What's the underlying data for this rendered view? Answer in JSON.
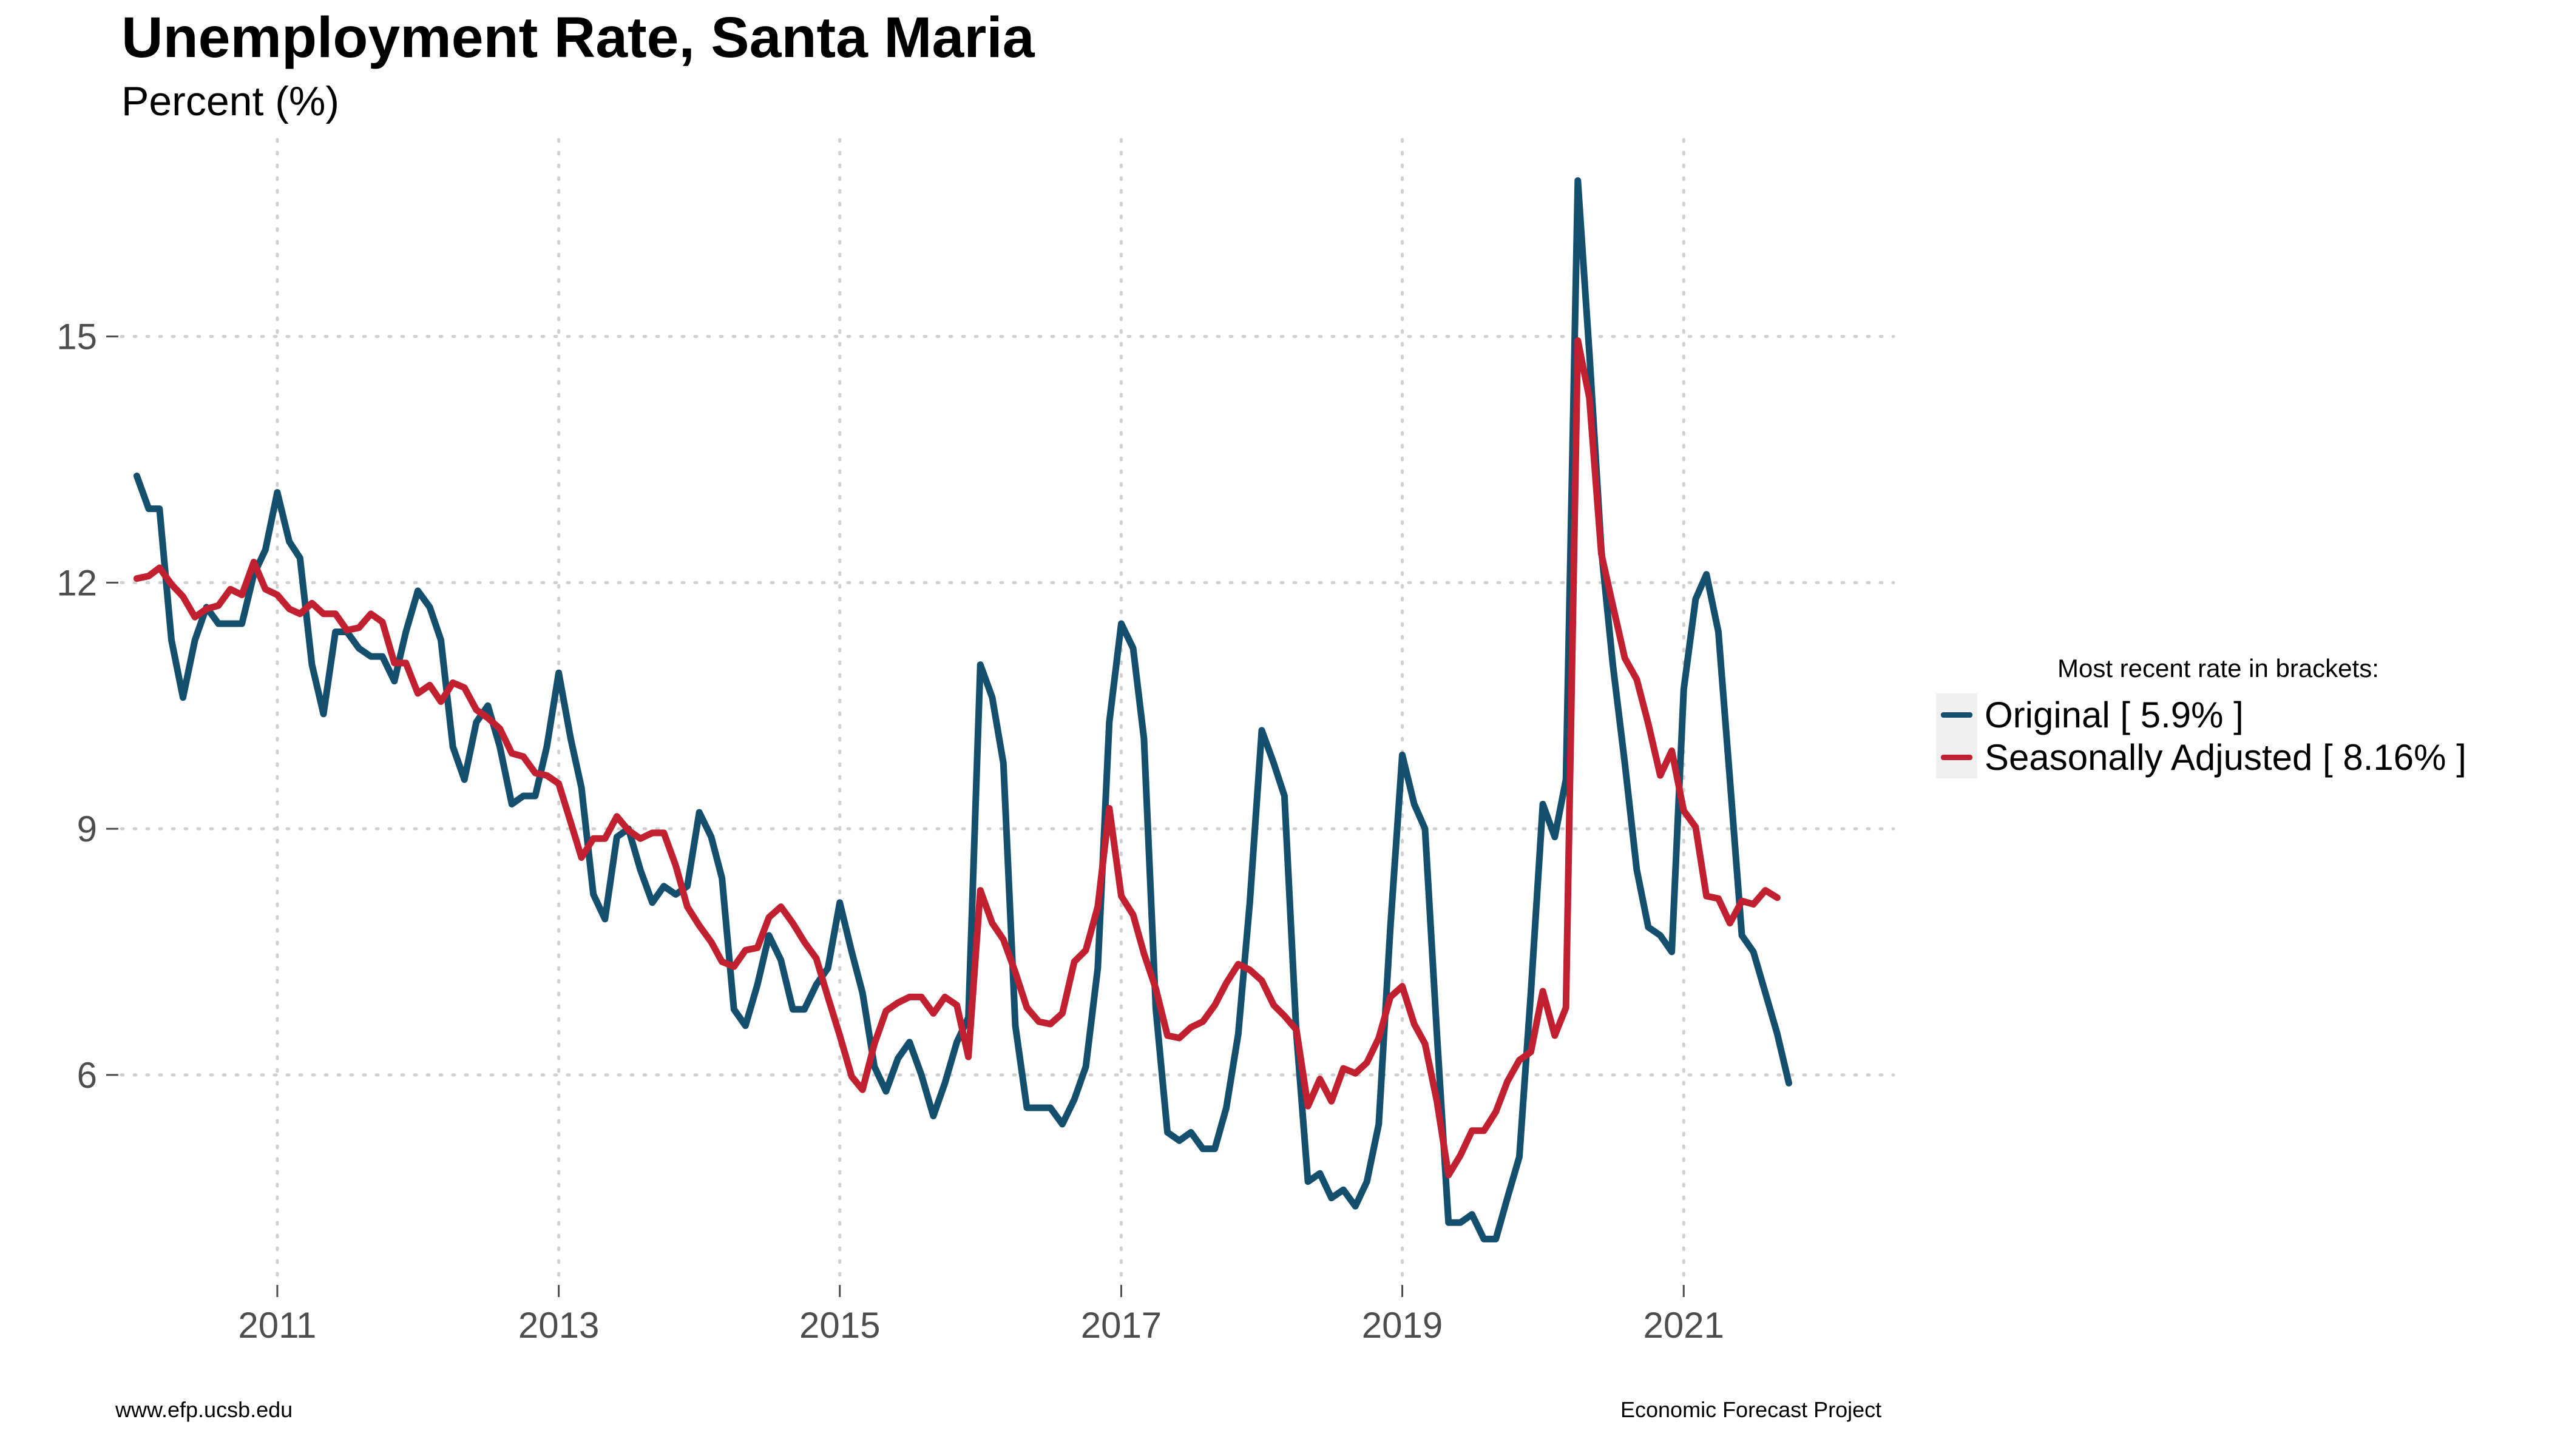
{
  "chart_data": {
    "type": "line",
    "title": "Unemployment Rate, Santa Maria",
    "subtitle": "Percent (%)",
    "xlabel": "",
    "ylabel": "",
    "x_ticks": [
      "2011",
      "2013",
      "2015",
      "2017",
      "2019",
      "2021"
    ],
    "y_ticks": [
      "6",
      "9",
      "12",
      "15"
    ],
    "ylim": [
      3.5,
      17.4
    ],
    "xlim": [
      "2009-11-22",
      "2022-06-30"
    ],
    "grid": "dotted",
    "legend": {
      "title": "Most recent rate in brackets:",
      "position": "right",
      "entries": [
        "Original [ 5.9% ]",
        "Seasonally Adjusted [ 8.16% ]"
      ]
    },
    "start": "2010-01",
    "frequency": "monthly",
    "series": [
      {
        "name": "Original",
        "color": "#14506e",
        "values": [
          13.3,
          12.9,
          12.9,
          11.3,
          10.6,
          11.3,
          11.7,
          11.5,
          11.5,
          11.5,
          12.1,
          12.4,
          13.1,
          12.5,
          12.3,
          11.0,
          10.4,
          11.4,
          11.4,
          11.2,
          11.1,
          11.1,
          10.8,
          11.4,
          11.9,
          11.7,
          11.3,
          10.0,
          9.6,
          10.3,
          10.5,
          10.0,
          9.3,
          9.4,
          9.4,
          10.0,
          10.9,
          10.1,
          9.5,
          8.2,
          7.9,
          8.9,
          9.0,
          8.5,
          8.1,
          8.3,
          8.2,
          8.3,
          9.2,
          8.9,
          8.4,
          6.8,
          6.6,
          7.1,
          7.7,
          7.4,
          6.8,
          6.8,
          7.1,
          7.3,
          8.1,
          7.5,
          7.0,
          6.1,
          5.8,
          6.2,
          6.4,
          6.0,
          5.5,
          5.9,
          6.4,
          6.7,
          11.0,
          10.6,
          9.8,
          6.6,
          5.6,
          5.6,
          5.6,
          5.4,
          5.7,
          6.1,
          7.3,
          10.3,
          11.5,
          11.2,
          10.1,
          6.8,
          5.3,
          5.2,
          5.3,
          5.1,
          5.1,
          5.6,
          6.5,
          8.1,
          10.2,
          9.8,
          9.4,
          6.5,
          4.7,
          4.8,
          4.5,
          4.6,
          4.4,
          4.7,
          5.4,
          7.8,
          9.9,
          9.3,
          9.0,
          6.5,
          4.2,
          4.2,
          4.3,
          4.0,
          4.0,
          4.5,
          5.0,
          7.0,
          9.3,
          8.9,
          9.6,
          16.9,
          14.8,
          12.4,
          11.0,
          9.8,
          8.5,
          7.8,
          7.7,
          7.5,
          10.7,
          11.8,
          12.1,
          11.4,
          9.6,
          7.7,
          7.5,
          7.0,
          6.5,
          5.9
        ]
      },
      {
        "name": "Seasonally Adjusted",
        "color": "#c0202f",
        "values": [
          12.05,
          12.08,
          12.18,
          11.98,
          11.83,
          11.58,
          11.68,
          11.72,
          11.92,
          11.85,
          12.25,
          11.92,
          11.85,
          11.68,
          11.62,
          11.75,
          11.62,
          11.62,
          11.42,
          11.45,
          11.62,
          11.52,
          11.02,
          11.02,
          10.65,
          10.75,
          10.55,
          10.78,
          10.72,
          10.45,
          10.35,
          10.22,
          9.92,
          9.88,
          9.68,
          9.65,
          9.55,
          9.08,
          8.65,
          8.88,
          8.88,
          9.15,
          8.98,
          8.88,
          8.95,
          8.95,
          8.55,
          8.05,
          7.82,
          7.62,
          7.38,
          7.32,
          7.52,
          7.55,
          7.92,
          8.05,
          7.85,
          7.62,
          7.42,
          6.95,
          6.48,
          5.98,
          5.82,
          6.38,
          6.78,
          6.88,
          6.95,
          6.95,
          6.75,
          6.95,
          6.85,
          6.22,
          8.25,
          7.85,
          7.65,
          7.25,
          6.82,
          6.65,
          6.62,
          6.75,
          7.38,
          7.52,
          8.05,
          9.25,
          8.18,
          7.95,
          7.48,
          7.05,
          6.48,
          6.45,
          6.58,
          6.65,
          6.85,
          7.12,
          7.35,
          7.28,
          7.15,
          6.85,
          6.72,
          6.55,
          5.62,
          5.95,
          5.68,
          6.08,
          6.02,
          6.15,
          6.45,
          6.95,
          7.08,
          6.62,
          6.38,
          5.68,
          4.78,
          5.02,
          5.32,
          5.32,
          5.55,
          5.92,
          6.18,
          6.28,
          7.02,
          6.48,
          6.82,
          14.95,
          14.25,
          12.35,
          11.72,
          11.08,
          10.82,
          10.28,
          9.65,
          9.95,
          9.22,
          9.02,
          8.18,
          8.15,
          7.85,
          8.12,
          8.08,
          8.25,
          8.16
        ]
      }
    ]
  },
  "footer": {
    "left": "www.efp.ucsb.edu",
    "right": "Economic Forecast Project"
  }
}
